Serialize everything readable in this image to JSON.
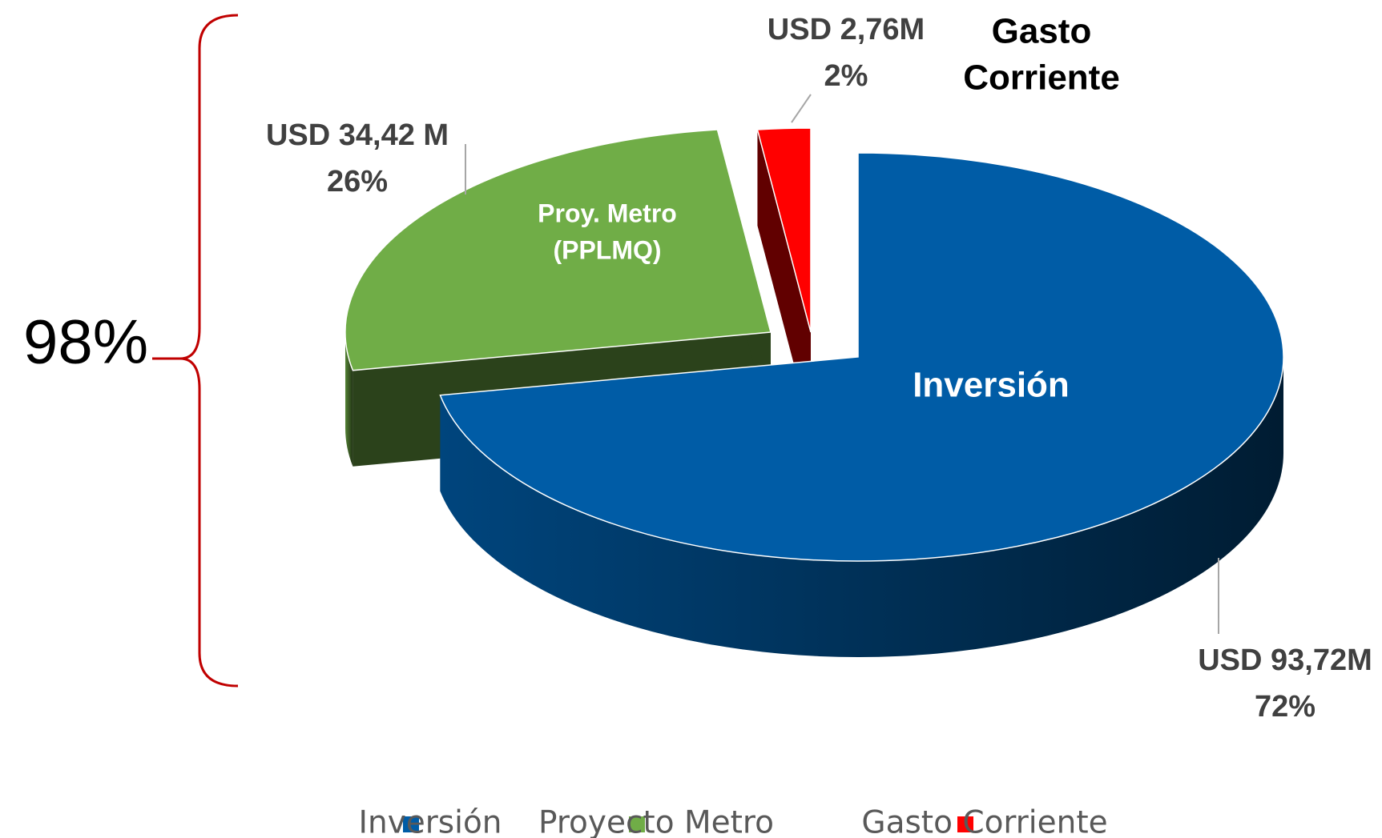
{
  "chart_data": {
    "type": "pie3d",
    "categories": [
      "Inversión",
      "Proyecto Metro",
      "Gasto Corriente"
    ],
    "values": [
      72,
      26,
      2
    ],
    "value_labels": [
      "72%",
      "26%",
      "2%"
    ],
    "amount_labels": [
      "USD 93,72M",
      "USD 34,42 M",
      "USD 2,76M"
    ],
    "slice_labels": [
      [
        "Inversión"
      ],
      [
        "Proy. Metro",
        "(PPLMQ)"
      ],
      [
        "Gasto",
        "Corriente"
      ]
    ],
    "colors": [
      "#005ca6",
      "#70ad47",
      "#ff0000"
    ],
    "annotation": "98%",
    "legend": "bottom"
  }
}
